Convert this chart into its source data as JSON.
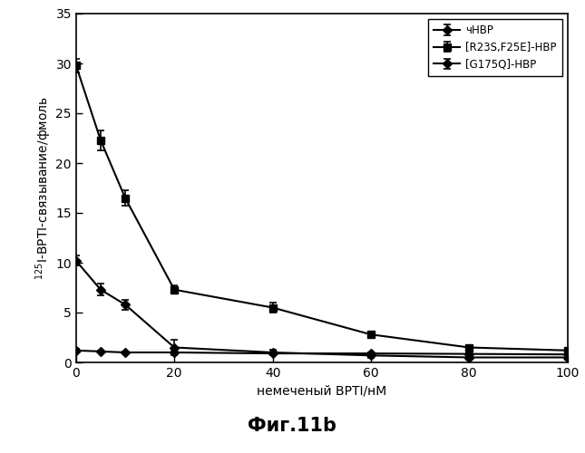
{
  "title": "Фиг.11b",
  "xlabel": "немеченый BPTI/нМ",
  "ylabel": "$^{125}$I-BPTI-связывание/фмоль",
  "xlim": [
    0,
    100
  ],
  "ylim": [
    0,
    35
  ],
  "xticks": [
    0,
    20,
    40,
    60,
    80,
    100
  ],
  "yticks": [
    0,
    5,
    10,
    15,
    20,
    25,
    30,
    35
  ],
  "series": [
    {
      "label": "чНВР",
      "x": [
        0,
        5,
        10,
        20,
        40,
        60,
        80,
        100
      ],
      "y": [
        10.2,
        7.3,
        5.8,
        1.5,
        1.0,
        0.7,
        0.5,
        0.5
      ],
      "yerr": [
        0.5,
        0.6,
        0.5,
        0.8,
        0.3,
        0.2,
        0.2,
        0.2
      ],
      "marker": "D",
      "markersize": 5
    },
    {
      "label": "[R23S,F25E]-НВР",
      "x": [
        0,
        5,
        10,
        20,
        40,
        60,
        80,
        100
      ],
      "y": [
        29.8,
        22.3,
        16.5,
        7.3,
        5.5,
        2.8,
        1.5,
        1.2
      ],
      "yerr": [
        0.7,
        1.0,
        0.8,
        0.4,
        0.5,
        0.3,
        0.2,
        0.2
      ],
      "marker": "s",
      "markersize": 6
    },
    {
      "label": "[G175Q]-НВР",
      "x": [
        0,
        5,
        10,
        20,
        40,
        60,
        80,
        100
      ],
      "y": [
        1.2,
        1.1,
        1.0,
        1.0,
        0.9,
        0.9,
        0.85,
        0.8
      ],
      "yerr": [
        0.15,
        0.1,
        0.1,
        0.1,
        0.1,
        0.1,
        0.1,
        0.1
      ],
      "marker": "D",
      "markersize": 5
    }
  ],
  "background_color": "#ffffff",
  "legend_fontsize": 8.5,
  "axis_fontsize": 10,
  "title_fontsize": 15,
  "tick_labelsize": 10
}
